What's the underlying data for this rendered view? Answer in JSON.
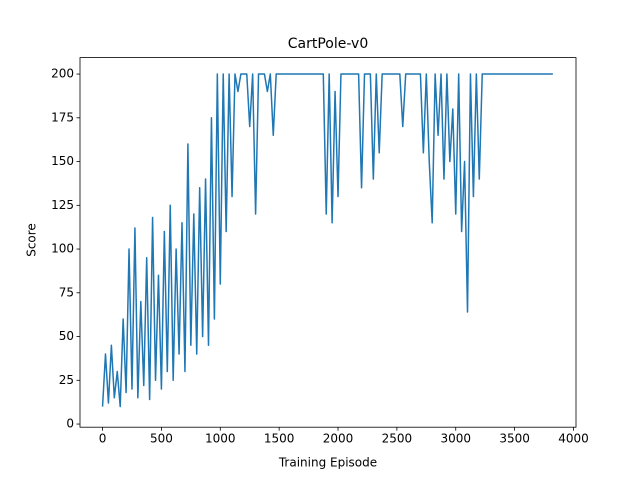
{
  "chart_data": {
    "type": "line",
    "title": "CartPole-v0",
    "x_label": "Training Episode",
    "y_label": "Score",
    "color": "#1f77b4",
    "x": [
      0,
      25,
      50,
      75,
      100,
      125,
      150,
      175,
      200,
      225,
      250,
      275,
      300,
      325,
      350,
      375,
      400,
      425,
      450,
      475,
      500,
      525,
      550,
      575,
      600,
      625,
      650,
      675,
      700,
      725,
      750,
      775,
      800,
      825,
      850,
      875,
      900,
      925,
      950,
      975,
      1000,
      1025,
      1050,
      1075,
      1100,
      1125,
      1150,
      1175,
      1200,
      1225,
      1250,
      1275,
      1300,
      1325,
      1350,
      1375,
      1400,
      1425,
      1450,
      1475,
      1500,
      1525,
      1550,
      1575,
      1600,
      1625,
      1650,
      1675,
      1700,
      1725,
      1750,
      1775,
      1800,
      1825,
      1850,
      1875,
      1900,
      1925,
      1950,
      1975,
      2000,
      2025,
      2050,
      2075,
      2100,
      2125,
      2150,
      2175,
      2200,
      2225,
      2250,
      2275,
      2300,
      2325,
      2350,
      2375,
      2400,
      2425,
      2450,
      2475,
      2500,
      2525,
      2550,
      2575,
      2600,
      2625,
      2650,
      2675,
      2700,
      2725,
      2750,
      2775,
      2800,
      2825,
      2850,
      2875,
      2900,
      2925,
      2950,
      2975,
      3000,
      3025,
      3050,
      3075,
      3100,
      3125,
      3150,
      3175,
      3200,
      3225,
      3250,
      3275,
      3300,
      3325,
      3350,
      3375,
      3400,
      3425,
      3450,
      3475,
      3500,
      3525,
      3550,
      3575,
      3600,
      3625,
      3650,
      3675,
      3700,
      3725,
      3750,
      3775,
      3800,
      3825
    ],
    "values": [
      10,
      40,
      12,
      45,
      15,
      30,
      10,
      60,
      18,
      100,
      20,
      112,
      15,
      70,
      22,
      95,
      14,
      118,
      25,
      85,
      20,
      110,
      30,
      125,
      25,
      100,
      40,
      115,
      30,
      160,
      45,
      120,
      40,
      135,
      50,
      140,
      45,
      175,
      60,
      200,
      80,
      200,
      110,
      200,
      130,
      200,
      190,
      200,
      200,
      200,
      170,
      200,
      120,
      200,
      200,
      200,
      190,
      200,
      165,
      200,
      200,
      200,
      200,
      200,
      200,
      200,
      200,
      200,
      200,
      200,
      200,
      200,
      200,
      200,
      200,
      200,
      120,
      200,
      115,
      190,
      130,
      200,
      200,
      200,
      200,
      200,
      200,
      200,
      135,
      200,
      200,
      200,
      140,
      200,
      155,
      200,
      200,
      200,
      200,
      200,
      200,
      200,
      170,
      200,
      200,
      200,
      200,
      200,
      200,
      155,
      200,
      150,
      115,
      200,
      165,
      200,
      140,
      200,
      150,
      180,
      120,
      200,
      110,
      150,
      64,
      200,
      130,
      200,
      140,
      200,
      200,
      200,
      200,
      200,
      200,
      200,
      200,
      200,
      200,
      200,
      200,
      200,
      200,
      200,
      200,
      200,
      200,
      200,
      200,
      200,
      200,
      200,
      200,
      200
    ],
    "xlim": [
      -191.5,
      4021.5
    ],
    "ylim": [
      -1.8,
      209.4
    ],
    "xticks": [
      0,
      500,
      1000,
      1500,
      2000,
      2500,
      3000,
      3500,
      4000
    ],
    "yticks": [
      0,
      25,
      50,
      75,
      100,
      125,
      150,
      175,
      200
    ]
  }
}
